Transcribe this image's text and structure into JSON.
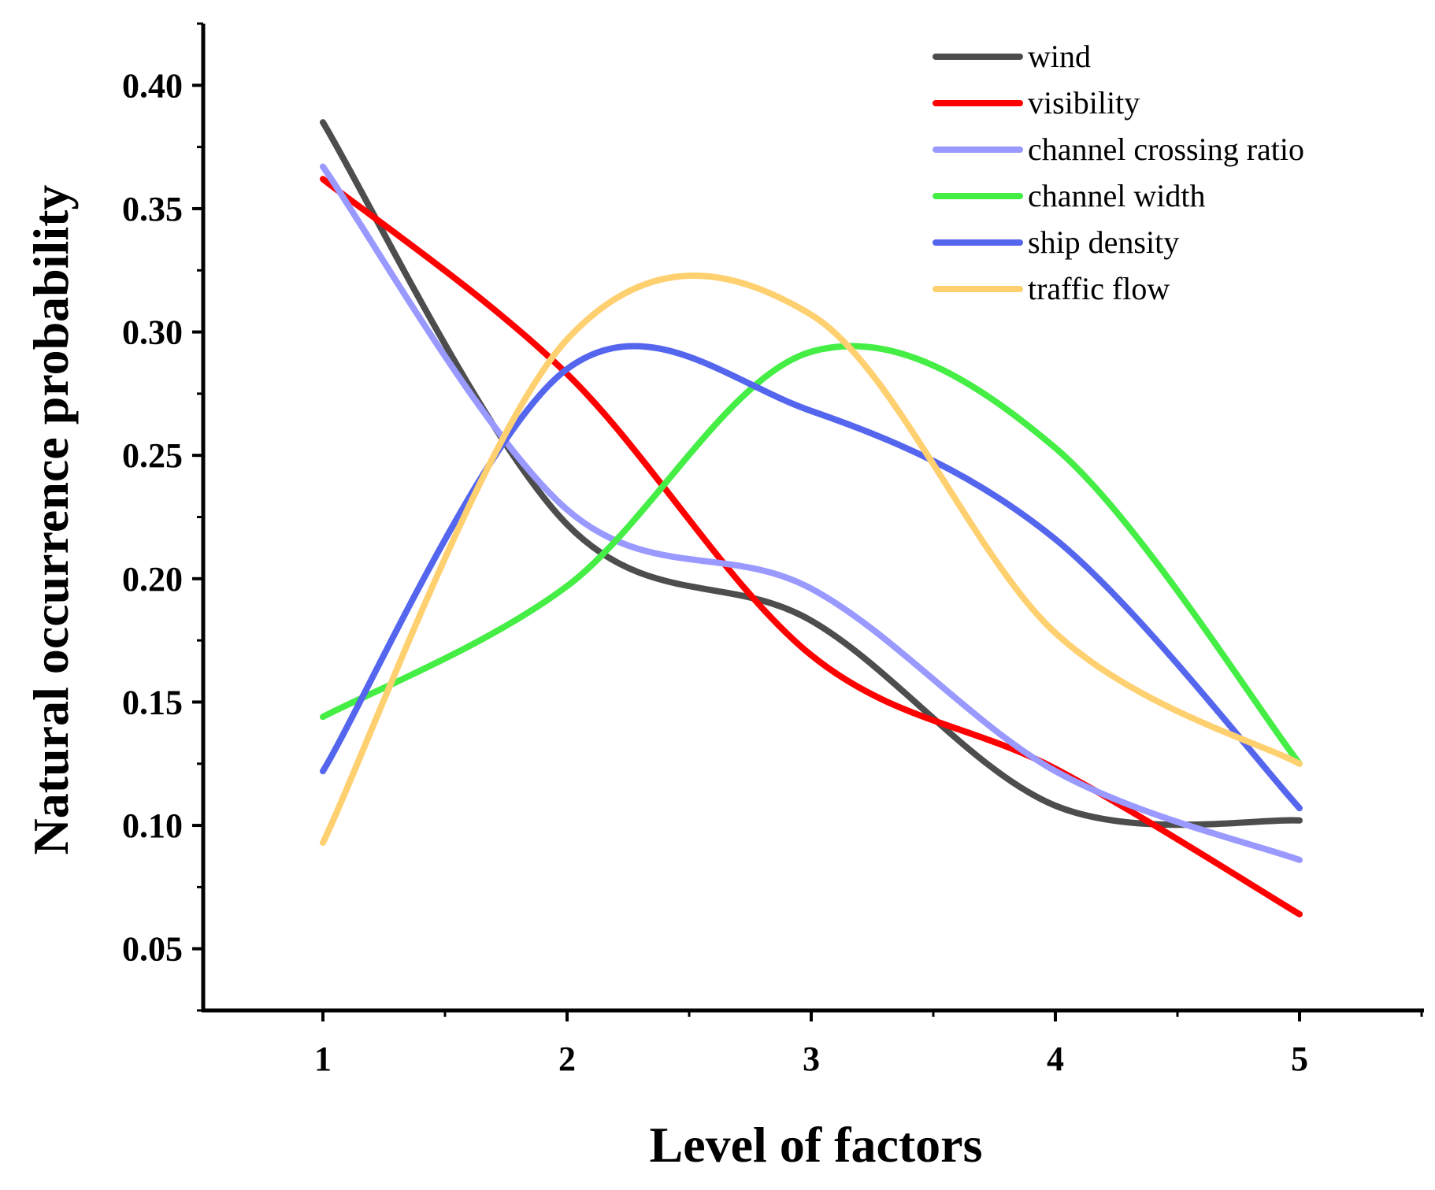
{
  "chart_data": {
    "type": "line",
    "smoothed": true,
    "title": "",
    "xlabel": "Level of factors",
    "ylabel": "Natural occurrence probability",
    "x": [
      1,
      2,
      3,
      4,
      5
    ],
    "xlim": [
      0.5,
      5.5
    ],
    "ylim": [
      0.025,
      0.425
    ],
    "xticks": [
      1,
      2,
      3,
      4,
      5
    ],
    "xtick_labels": [
      "1",
      "2",
      "3",
      "4",
      "5"
    ],
    "yticks": [
      0.05,
      0.1,
      0.15,
      0.2,
      0.25,
      0.3,
      0.35,
      0.4
    ],
    "ytick_labels": [
      "0.05",
      "0.10",
      "0.15",
      "0.20",
      "0.25",
      "0.30",
      "0.35",
      "0.40"
    ],
    "grid": false,
    "legend_position": "top-right",
    "series": [
      {
        "name": "wind",
        "color": "#4d4d4d",
        "values": [
          0.385,
          0.222,
          0.183,
          0.108,
          0.102
        ]
      },
      {
        "name": "visibility",
        "color": "#ff0000",
        "values": [
          0.362,
          0.283,
          0.169,
          0.123,
          0.064
        ]
      },
      {
        "name": "channel crossing ratio",
        "color": "#9999ff",
        "values": [
          0.367,
          0.228,
          0.196,
          0.122,
          0.086
        ]
      },
      {
        "name": "channel width",
        "color": "#44ee44",
        "values": [
          0.144,
          0.197,
          0.292,
          0.253,
          0.125
        ]
      },
      {
        "name": "ship density",
        "color": "#5566ee",
        "values": [
          0.122,
          0.285,
          0.268,
          0.216,
          0.107
        ]
      },
      {
        "name": "traffic flow",
        "color": "#ffd070",
        "values": [
          0.093,
          0.297,
          0.307,
          0.178,
          0.125
        ]
      }
    ]
  }
}
